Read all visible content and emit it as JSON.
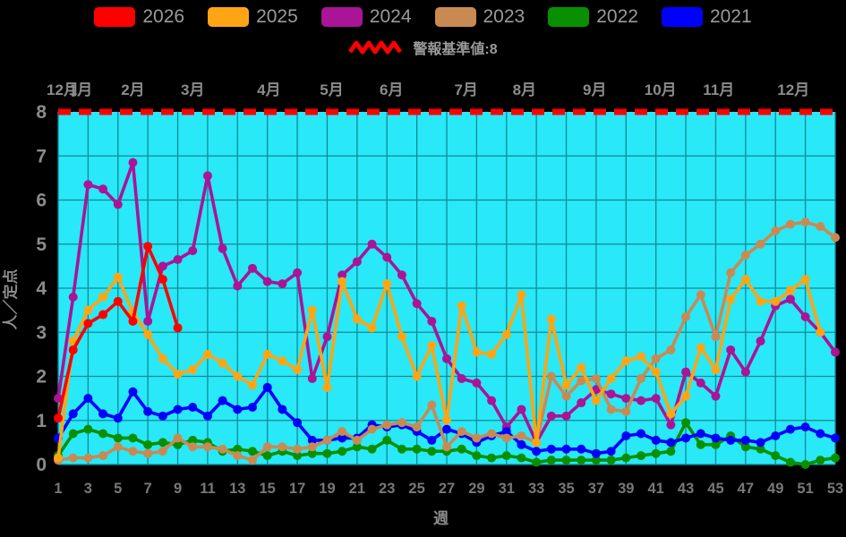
{
  "legend": {
    "items": [
      {
        "label": "2026",
        "color": "#ff0000"
      },
      {
        "label": "2025",
        "color": "#ffa514"
      },
      {
        "label": "2024",
        "color": "#aa1496"
      },
      {
        "label": "2023",
        "color": "#c98a52"
      },
      {
        "label": "2022",
        "color": "#089000"
      },
      {
        "label": "2021",
        "color": "#0000ff"
      }
    ]
  },
  "warning": {
    "label": "警報基準値:8",
    "value": 8,
    "color": "#ff0000"
  },
  "axes": {
    "y_label": "人／定点",
    "x_label": "週",
    "y_ticks": [
      0,
      1,
      2,
      3,
      4,
      5,
      6,
      7,
      8
    ],
    "x_ticks": [
      1,
      3,
      5,
      7,
      9,
      11,
      13,
      15,
      17,
      19,
      21,
      23,
      25,
      27,
      29,
      31,
      33,
      35,
      37,
      39,
      41,
      43,
      45,
      47,
      49,
      51,
      53
    ],
    "months": [
      {
        "label": "12月",
        "week": 1.3
      },
      {
        "label": "1月",
        "week": 2.5
      },
      {
        "label": "2月",
        "week": 6.0
      },
      {
        "label": "3月",
        "week": 10.0
      },
      {
        "label": "4月",
        "week": 15.1
      },
      {
        "label": "5月",
        "week": 19.3
      },
      {
        "label": "6月",
        "week": 23.3
      },
      {
        "label": "7月",
        "week": 28.3
      },
      {
        "label": "8月",
        "week": 32.2
      },
      {
        "label": "9月",
        "week": 36.9
      },
      {
        "label": "10月",
        "week": 41.3
      },
      {
        "label": "11月",
        "week": 45.2
      },
      {
        "label": "12月",
        "week": 50.2
      }
    ]
  },
  "chart_data": {
    "type": "line",
    "x_label": "週",
    "y_label": "人／定点",
    "xlim": [
      1,
      53
    ],
    "ylim": [
      0,
      8
    ],
    "grid": true,
    "plot_background": "#29e8f8",
    "grid_color": "#0e8a96",
    "threshold": {
      "label": "警報基準値:8",
      "value": 8,
      "color": "#ff0000",
      "style": "dashed"
    },
    "legend_position": "top",
    "draw_order": [
      "2024",
      "2022",
      "2021",
      "2023",
      "2025",
      "2026"
    ],
    "series": [
      {
        "name": "2026",
        "color": "#ff0000",
        "start_week": 1,
        "values": [
          1.05,
          2.6,
          3.2,
          3.4,
          3.7,
          3.25,
          4.95,
          4.2,
          3.1
        ]
      },
      {
        "name": "2025",
        "color": "#ffa514",
        "start_week": 1,
        "values": [
          0.15,
          2.8,
          3.5,
          3.8,
          4.25,
          3.45,
          2.95,
          2.4,
          2.05,
          2.15,
          2.5,
          2.3,
          2.0,
          1.8,
          2.5,
          2.35,
          2.15,
          3.5,
          1.75,
          4.15,
          3.3,
          3.1,
          4.1,
          2.9,
          2.0,
          2.7,
          1.0,
          3.6,
          2.55,
          2.5,
          2.95,
          3.85,
          0.5,
          3.3,
          1.8,
          2.2,
          1.45,
          1.95,
          2.35,
          2.45,
          2.1,
          1.15,
          1.55,
          2.65,
          2.15,
          3.75,
          4.2,
          3.7,
          3.7,
          3.95,
          4.2,
          3.0
        ]
      },
      {
        "name": "2024",
        "color": "#aa1496",
        "start_week": 1,
        "values": [
          1.5,
          3.8,
          6.35,
          6.25,
          5.9,
          6.85,
          3.25,
          4.5,
          4.65,
          4.85,
          6.55,
          4.9,
          4.05,
          4.45,
          4.15,
          4.1,
          4.35,
          1.95,
          2.9,
          4.3,
          4.6,
          5.0,
          4.7,
          4.3,
          3.65,
          3.25,
          2.4,
          1.95,
          1.85,
          1.45,
          0.85,
          1.25,
          0.5,
          1.1,
          1.1,
          1.4,
          1.7,
          1.6,
          1.5,
          1.45,
          1.5,
          0.9,
          2.1,
          1.85,
          1.55,
          2.6,
          2.1,
          2.8,
          3.6,
          3.75,
          3.35,
          3.0,
          2.55
        ]
      },
      {
        "name": "2023",
        "color": "#c98a52",
        "start_week": 1,
        "values": [
          0.1,
          0.15,
          0.15,
          0.2,
          0.4,
          0.3,
          0.25,
          0.3,
          0.6,
          0.4,
          0.4,
          0.35,
          0.2,
          0.1,
          0.4,
          0.4,
          0.35,
          0.4,
          0.55,
          0.75,
          0.55,
          0.8,
          0.9,
          0.95,
          0.85,
          1.35,
          0.4,
          0.75,
          0.6,
          0.7,
          0.6,
          0.65,
          0.5,
          2.0,
          1.55,
          1.9,
          1.95,
          1.25,
          1.2,
          1.95,
          2.4,
          2.6,
          3.35,
          3.85,
          2.9,
          4.35,
          4.75,
          5.0,
          5.3,
          5.45,
          5.5,
          5.4,
          5.15
        ]
      },
      {
        "name": "2022",
        "color": "#089000",
        "start_week": 1,
        "values": [
          0.2,
          0.7,
          0.8,
          0.7,
          0.6,
          0.6,
          0.45,
          0.5,
          0.45,
          0.55,
          0.5,
          0.3,
          0.35,
          0.3,
          0.2,
          0.3,
          0.2,
          0.25,
          0.25,
          0.3,
          0.4,
          0.35,
          0.55,
          0.35,
          0.35,
          0.3,
          0.3,
          0.35,
          0.2,
          0.15,
          0.2,
          0.15,
          0.05,
          0.1,
          0.1,
          0.1,
          0.1,
          0.1,
          0.15,
          0.2,
          0.25,
          0.3,
          0.95,
          0.45,
          0.45,
          0.65,
          0.4,
          0.35,
          0.2,
          0.05,
          0.0,
          0.1,
          0.15
        ]
      },
      {
        "name": "2021",
        "color": "#0000ff",
        "start_week": 1,
        "values": [
          0.6,
          1.15,
          1.5,
          1.15,
          1.05,
          1.65,
          1.2,
          1.1,
          1.25,
          1.3,
          1.1,
          1.45,
          1.25,
          1.3,
          1.75,
          1.25,
          0.95,
          0.55,
          0.55,
          0.6,
          0.6,
          0.9,
          0.85,
          0.9,
          0.75,
          0.55,
          0.8,
          0.7,
          0.5,
          0.65,
          0.75,
          0.45,
          0.3,
          0.35,
          0.35,
          0.35,
          0.25,
          0.3,
          0.65,
          0.7,
          0.55,
          0.5,
          0.6,
          0.7,
          0.6,
          0.55,
          0.55,
          0.5,
          0.65,
          0.8,
          0.85,
          0.7,
          0.6
        ]
      }
    ]
  }
}
